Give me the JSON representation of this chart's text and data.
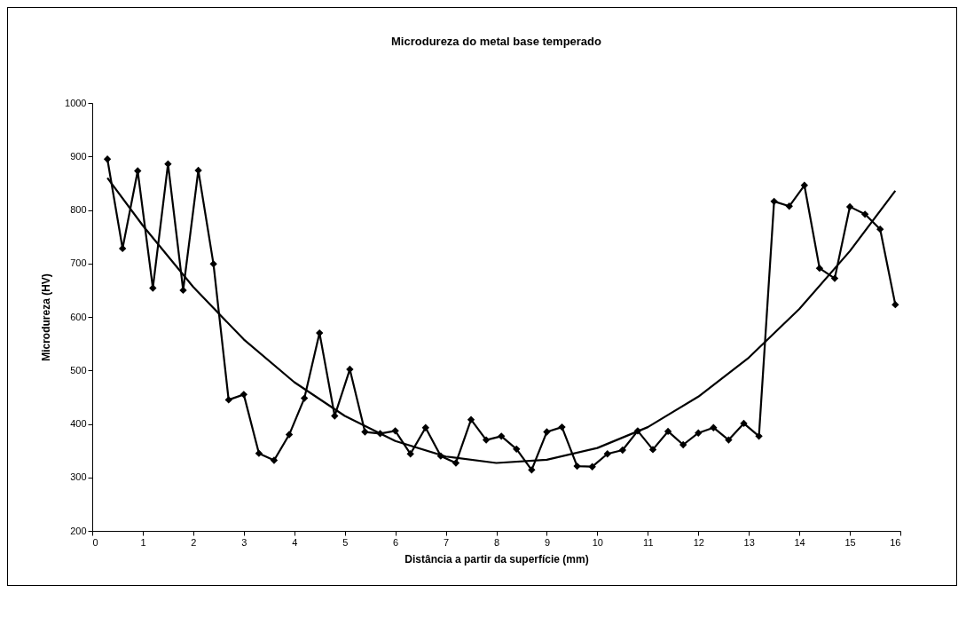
{
  "chart_data": {
    "type": "line",
    "title": "Microdureza do metal base temperado",
    "xlabel": "Distância a partir da superfície (mm)",
    "ylabel": "Microdureza (HV)",
    "xlim": [
      0,
      16
    ],
    "xticks": [
      0,
      1,
      2,
      3,
      4,
      5,
      6,
      7,
      8,
      9,
      10,
      11,
      12,
      13,
      14,
      15,
      16
    ],
    "ylim": [
      200,
      1000
    ],
    "yticks": [
      200,
      300,
      400,
      500,
      600,
      700,
      800,
      900,
      1000
    ],
    "grid": false,
    "line_style": "solid",
    "series": [
      {
        "color": "#000000",
        "marker": "diamond",
        "x": [
          0.3,
          0.6,
          0.9,
          1.2,
          1.5,
          1.8,
          2.1,
          2.4,
          2.7,
          3.0,
          3.3,
          3.6,
          3.9,
          4.2,
          4.5,
          4.8,
          5.1,
          5.4,
          5.7,
          6.0,
          6.3,
          6.6,
          6.9,
          7.2,
          7.5,
          7.8,
          8.1,
          8.4,
          8.7,
          9.0,
          9.3,
          9.6,
          9.9,
          10.2,
          10.5,
          10.8,
          11.1,
          11.4,
          11.7,
          12.0,
          12.3,
          12.6,
          12.9,
          13.2,
          13.5,
          13.8,
          14.1,
          14.4,
          14.7,
          15.0,
          15.3,
          15.6,
          15.9
        ],
        "values": [
          895,
          728,
          873,
          654,
          886,
          650,
          874,
          699,
          445,
          455,
          345,
          332,
          380,
          448,
          570,
          415,
          502,
          385,
          382,
          387,
          344,
          393,
          340,
          327,
          408,
          370,
          377,
          353,
          314,
          385,
          394,
          321,
          320,
          344,
          351,
          387,
          352,
          386,
          361,
          383,
          393,
          370,
          401,
          377,
          816,
          807,
          846,
          691,
          672,
          806,
          792,
          764,
          623
        ]
      },
      {
        "color": "#000000",
        "marker": "none",
        "x": [
          0.3,
          1,
          2,
          3,
          4,
          5,
          6,
          7,
          8,
          9,
          10,
          11,
          12,
          13,
          14,
          15,
          15.9
        ],
        "values": [
          860,
          771,
          656,
          558,
          478,
          415,
          368,
          339,
          327,
          333,
          355,
          394,
          451,
          524,
          615,
          723,
          836
        ]
      }
    ]
  }
}
